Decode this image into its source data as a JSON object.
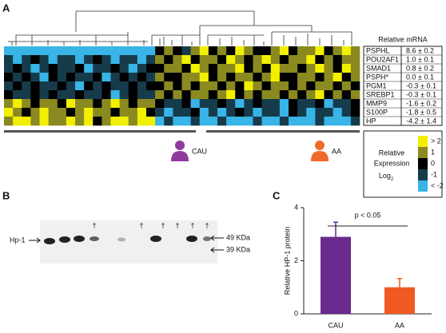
{
  "panels": {
    "a": "A",
    "b": "B",
    "c": "C"
  },
  "chart_data": [
    {
      "type": "heatmap",
      "values": [
        [
          -2,
          -2,
          -2,
          -2,
          -2,
          -2,
          -2,
          -2,
          -2,
          -2,
          -2,
          -2,
          -2,
          -2,
          -2,
          -2,
          -2,
          0,
          1,
          0,
          -1,
          1,
          2,
          0,
          1,
          0,
          2,
          1,
          0,
          0,
          1,
          2,
          0,
          1,
          1,
          2,
          0,
          1,
          2,
          1
        ],
        [
          -1,
          -2,
          -1,
          0,
          -1,
          -2,
          -1,
          -1,
          -2,
          -1,
          0,
          -1,
          -2,
          -1,
          -1,
          -2,
          -1,
          1,
          0,
          1,
          2,
          0,
          1,
          1,
          0,
          2,
          1,
          0,
          1,
          2,
          1,
          0,
          1,
          1,
          2,
          0,
          1,
          0,
          1,
          1
        ],
        [
          -1,
          0,
          -1,
          -2,
          -1,
          0,
          -1,
          -1,
          0,
          -2,
          -1,
          -1,
          0,
          -1,
          -2,
          -1,
          0,
          0,
          1,
          1,
          0,
          2,
          1,
          0,
          1,
          1,
          2,
          0,
          1,
          0,
          2,
          1,
          1,
          0,
          1,
          2,
          1,
          0,
          2,
          1
        ],
        [
          0,
          -1,
          0,
          -1,
          -2,
          0,
          -1,
          0,
          -1,
          -1,
          0,
          -2,
          -1,
          0,
          -1,
          0,
          -1,
          1,
          0,
          0,
          1,
          1,
          2,
          0,
          1,
          0,
          1,
          1,
          0,
          1,
          2,
          0,
          0,
          1,
          1,
          0,
          1,
          2,
          0,
          1
        ],
        [
          -1,
          0,
          -1,
          0,
          -1,
          -1,
          0,
          -1,
          -2,
          0,
          -1,
          0,
          -1,
          -1,
          0,
          -1,
          0,
          0,
          1,
          0,
          1,
          0,
          1,
          1,
          0,
          1,
          0,
          2,
          1,
          0,
          1,
          1,
          0,
          1,
          0,
          1,
          1,
          0,
          1,
          0
        ],
        [
          0,
          -1,
          -1,
          0,
          -1,
          0,
          -1,
          -1,
          0,
          -1,
          -1,
          0,
          -2,
          -1,
          0,
          -1,
          -1,
          1,
          0,
          1,
          0,
          1,
          1,
          0,
          1,
          2,
          0,
          1,
          0,
          1,
          1,
          0,
          1,
          0,
          1,
          2,
          0,
          1,
          0,
          1
        ],
        [
          1,
          2,
          1,
          0,
          1,
          1,
          0,
          2,
          1,
          1,
          0,
          1,
          2,
          1,
          0,
          1,
          1,
          0,
          -1,
          -1,
          0,
          -2,
          -1,
          -1,
          0,
          -1,
          -2,
          -1,
          0,
          -1,
          -1,
          -2,
          0,
          -1,
          -1,
          0,
          -2,
          -1,
          -1,
          0
        ],
        [
          2,
          1,
          0,
          1,
          2,
          1,
          1,
          0,
          1,
          2,
          1,
          1,
          0,
          1,
          1,
          2,
          0,
          -1,
          -2,
          -1,
          -1,
          0,
          -2,
          -1,
          -2,
          -1,
          0,
          -1,
          -2,
          -1,
          -1,
          -2,
          0,
          -1,
          -2,
          -1,
          -1,
          -2,
          -1,
          0
        ],
        [
          1,
          2,
          2,
          1,
          2,
          1,
          1,
          2,
          1,
          2,
          0,
          1,
          2,
          2,
          1,
          2,
          2,
          -2,
          -1,
          -2,
          -2,
          -1,
          -2,
          -2,
          -1,
          -2,
          -2,
          -2,
          -1,
          -2,
          -2,
          -1,
          -2,
          -2,
          -2,
          -1,
          -2,
          -2,
          -2,
          -1
        ]
      ],
      "groups": [
        "CAU",
        "AA"
      ],
      "group_colors": [
        "#8e3a9e",
        "#f06a2a"
      ],
      "legend_title": [
        "Relative",
        "Expression",
        "Log",
        "2"
      ],
      "scale_ticks": [
        {
          "value": 2,
          "label": "> 2"
        },
        1,
        0,
        -1,
        {
          "value": -2,
          "label": "< -2"
        }
      ],
      "scale_colors": [
        "#f2f000",
        "#8a8a20",
        "#000000",
        "#163c4c",
        "#38b4e6"
      ]
    },
    {
      "type": "bar",
      "categories": [
        "CAU",
        "AA"
      ],
      "values": [
        2.9,
        1.0
      ],
      "errors": [
        0.55,
        0.33
      ],
      "colors": [
        "#6a2a8e",
        "#f05a22"
      ],
      "ylabel": "Relative HP-1 protein",
      "annotation": "p < 0.05",
      "ylim": [
        0,
        4
      ],
      "yticks": [
        0,
        2,
        4
      ]
    }
  ],
  "table": {
    "header": "Relative mRNA",
    "rows": [
      [
        "PSPHL",
        "8.6 ± 0.2"
      ],
      [
        "POU2AF1",
        "1.0 ± 0.1"
      ],
      [
        "SMAD1",
        "0.8 ± 0.2"
      ],
      [
        "PSPH*",
        "0.0 ± 0.1"
      ],
      [
        "PGM1",
        "-0.3 ± 0.1"
      ],
      [
        "SREBP1",
        "-0.3 ± 0.1"
      ],
      [
        "MMP9",
        "-1.6 ± 0.2"
      ],
      [
        "S100P",
        "-1.8 ± 0.5"
      ],
      [
        "HP",
        "-4.2 ± 1.4"
      ]
    ]
  },
  "blot": {
    "label": "Hp-1",
    "markers": [
      "49 KDa",
      "39 KDa"
    ],
    "daggers": [
      "†",
      "†",
      "†",
      "†",
      "†",
      "†"
    ]
  }
}
